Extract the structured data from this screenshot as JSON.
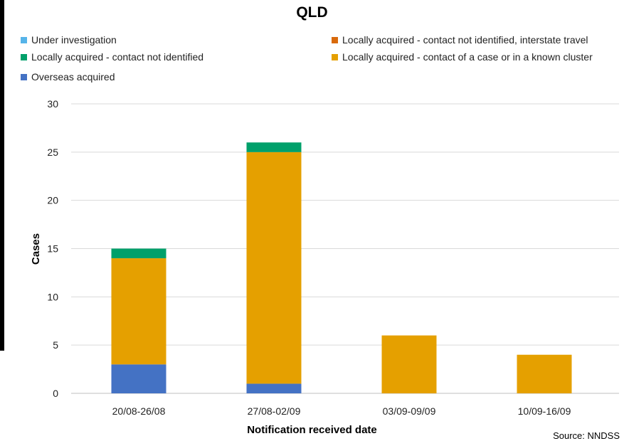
{
  "chart_data": {
    "type": "bar",
    "stacked": true,
    "title": "QLD",
    "xlabel": "Notification received date",
    "ylabel": "Cases",
    "ylim": [
      0,
      30
    ],
    "yticks": [
      0,
      5,
      10,
      15,
      20,
      25,
      30
    ],
    "grid": true,
    "legend_position": "top",
    "categories": [
      "20/08-26/08",
      "27/08-02/09",
      "03/09-09/09",
      "10/09-16/09"
    ],
    "series": [
      {
        "name": "Overseas acquired",
        "color": "#4472C4",
        "values": [
          3,
          1,
          0,
          0
        ]
      },
      {
        "name": "Locally acquired - contact of a case or in a known cluster",
        "color": "#E5A000",
        "values": [
          11,
          24,
          6,
          4
        ]
      },
      {
        "name": "Locally acquired - contact not identified",
        "color": "#00A06A",
        "values": [
          1,
          1,
          0,
          0
        ]
      },
      {
        "name": "Locally acquired - contact not identified, interstate travel",
        "color": "#D96A0C",
        "values": [
          0,
          0,
          0,
          0
        ]
      },
      {
        "name": "Under investigation",
        "color": "#56B4E9",
        "values": [
          0,
          0,
          0,
          0
        ]
      }
    ],
    "legend": [
      "Under investigation",
      "Locally acquired - contact not identified, interstate travel",
      "Locally acquired - contact not identified",
      "Locally acquired - contact of a case or in a known cluster",
      "Overseas acquired"
    ],
    "source": "Source: NNDSS"
  }
}
